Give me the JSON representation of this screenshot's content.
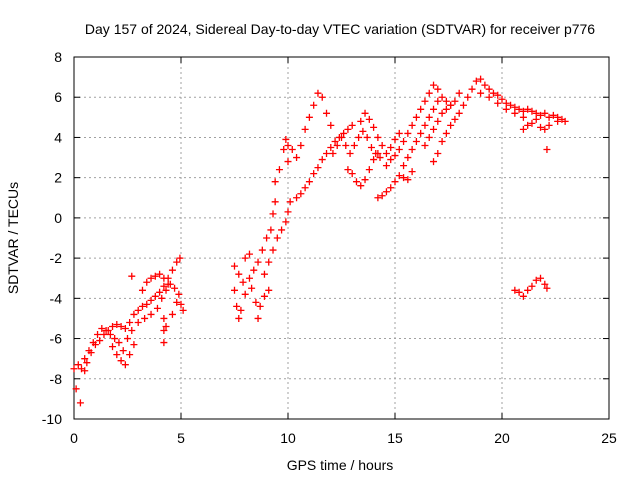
{
  "chart_data": {
    "type": "scatter",
    "title": "Day 157 of 2024, Sidereal Day-to-day VTEC variation (SDTVAR) for receiver p776",
    "xlabel": "GPS time / hours",
    "ylabel": "SDTVAR / TECUs",
    "xlim": [
      0,
      25
    ],
    "ylim": [
      -10,
      8
    ],
    "xticks": [
      0,
      5,
      10,
      15,
      20,
      25
    ],
    "yticks": [
      -10,
      -8,
      -6,
      -4,
      -2,
      0,
      2,
      4,
      6,
      8
    ],
    "grid": true,
    "marker": "plus",
    "color": "#ff0000",
    "series": [
      {
        "name": "",
        "points": [
          [
            0.3,
            -9.2
          ],
          [
            0.1,
            -8.5
          ],
          [
            0.0,
            -7.5
          ],
          [
            0.2,
            -7.3
          ],
          [
            0.35,
            -7.5
          ],
          [
            0.5,
            -7.6
          ],
          [
            0.6,
            -7.2
          ],
          [
            0.8,
            -6.7
          ],
          [
            1.0,
            -6.3
          ],
          [
            1.2,
            -6.1
          ],
          [
            1.4,
            -5.8
          ],
          [
            1.6,
            -5.6
          ],
          [
            1.8,
            -5.4
          ],
          [
            2.0,
            -5.3
          ],
          [
            2.2,
            -5.4
          ],
          [
            2.4,
            -5.5
          ],
          [
            2.6,
            -5.2
          ],
          [
            2.8,
            -4.8
          ],
          [
            3.0,
            -4.6
          ],
          [
            3.2,
            -4.4
          ],
          [
            3.4,
            -4.3
          ],
          [
            3.6,
            -4.1
          ],
          [
            3.8,
            -3.9
          ],
          [
            4.0,
            -3.7
          ],
          [
            4.2,
            -3.4
          ],
          [
            4.4,
            -3.0
          ],
          [
            4.6,
            -2.6
          ],
          [
            4.8,
            -2.2
          ],
          [
            4.95,
            -2.0
          ],
          [
            0.5,
            -7.0
          ],
          [
            0.7,
            -6.6
          ],
          [
            0.9,
            -6.2
          ],
          [
            1.1,
            -5.8
          ],
          [
            1.3,
            -5.5
          ],
          [
            1.5,
            -5.6
          ],
          [
            1.7,
            -5.8
          ],
          [
            1.9,
            -6.0
          ],
          [
            2.1,
            -6.2
          ],
          [
            2.3,
            -6.6
          ],
          [
            2.5,
            -6.0
          ],
          [
            2.7,
            -5.6
          ],
          [
            1.8,
            -6.4
          ],
          [
            2.0,
            -6.8
          ],
          [
            2.2,
            -7.1
          ],
          [
            2.4,
            -7.3
          ],
          [
            2.6,
            -6.8
          ],
          [
            2.8,
            -6.3
          ],
          [
            2.7,
            -2.9
          ],
          [
            3.0,
            -5.2
          ],
          [
            3.3,
            -5.0
          ],
          [
            3.6,
            -4.8
          ],
          [
            3.9,
            -4.5
          ],
          [
            4.1,
            -4.0
          ],
          [
            4.3,
            -3.6
          ],
          [
            4.5,
            -3.3
          ],
          [
            4.7,
            -3.5
          ],
          [
            4.9,
            -3.8
          ],
          [
            5.0,
            -4.3
          ],
          [
            5.1,
            -4.6
          ],
          [
            3.2,
            -3.6
          ],
          [
            3.4,
            -3.2
          ],
          [
            3.6,
            -3.0
          ],
          [
            3.8,
            -2.9
          ],
          [
            4.0,
            -2.8
          ],
          [
            4.2,
            -3.0
          ],
          [
            4.4,
            -3.3
          ],
          [
            4.2,
            -5.0
          ],
          [
            4.2,
            -5.6
          ],
          [
            4.2,
            -6.2
          ],
          [
            4.3,
            -5.4
          ],
          [
            4.6,
            -4.8
          ],
          [
            4.8,
            -4.2
          ],
          [
            7.5,
            -2.4
          ],
          [
            7.7,
            -2.8
          ],
          [
            7.9,
            -3.2
          ],
          [
            8.0,
            -2.0
          ],
          [
            8.2,
            -1.8
          ],
          [
            8.3,
            -3.5
          ],
          [
            8.5,
            -4.2
          ],
          [
            8.6,
            -5.0
          ],
          [
            8.7,
            -4.4
          ],
          [
            8.9,
            -3.9
          ],
          [
            9.1,
            -3.6
          ],
          [
            7.5,
            -3.6
          ],
          [
            7.6,
            -4.4
          ],
          [
            7.7,
            -5.0
          ],
          [
            7.8,
            -4.6
          ],
          [
            8.0,
            -3.8
          ],
          [
            8.2,
            -3.0
          ],
          [
            8.4,
            -2.6
          ],
          [
            8.6,
            -2.2
          ],
          [
            8.8,
            -1.6
          ],
          [
            9.0,
            -1.0
          ],
          [
            9.2,
            -0.6
          ],
          [
            9.3,
            0.2
          ],
          [
            9.4,
            0.8
          ],
          [
            8.9,
            -2.8
          ],
          [
            9.1,
            -2.2
          ],
          [
            9.3,
            -1.6
          ],
          [
            9.5,
            -1.0
          ],
          [
            9.7,
            -0.6
          ],
          [
            9.9,
            -0.2
          ],
          [
            10.0,
            0.3
          ],
          [
            10.1,
            0.8
          ],
          [
            9.4,
            1.8
          ],
          [
            9.6,
            2.4
          ],
          [
            9.8,
            3.4
          ],
          [
            9.9,
            3.9
          ],
          [
            10.0,
            2.8
          ],
          [
            10.4,
            1.0
          ],
          [
            10.6,
            1.2
          ],
          [
            10.8,
            1.5
          ],
          [
            11.0,
            1.8
          ],
          [
            11.2,
            2.2
          ],
          [
            11.4,
            2.5
          ],
          [
            11.6,
            2.9
          ],
          [
            11.8,
            3.2
          ],
          [
            12.0,
            3.5
          ],
          [
            12.2,
            3.8
          ],
          [
            12.4,
            4.0
          ],
          [
            12.6,
            4.2
          ],
          [
            12.8,
            4.4
          ],
          [
            13.0,
            4.6
          ],
          [
            10.0,
            3.6
          ],
          [
            10.2,
            3.4
          ],
          [
            10.4,
            3.0
          ],
          [
            10.6,
            3.6
          ],
          [
            10.8,
            4.4
          ],
          [
            11.0,
            5.0
          ],
          [
            11.2,
            5.6
          ],
          [
            11.4,
            6.2
          ],
          [
            11.6,
            6.0
          ],
          [
            11.8,
            5.2
          ],
          [
            12.0,
            4.6
          ],
          [
            12.1,
            3.2
          ],
          [
            12.3,
            3.6
          ],
          [
            12.5,
            4.0
          ],
          [
            12.7,
            3.6
          ],
          [
            12.9,
            3.2
          ],
          [
            13.1,
            3.6
          ],
          [
            13.3,
            4.0
          ],
          [
            13.5,
            4.3
          ],
          [
            13.7,
            4.0
          ],
          [
            13.9,
            3.5
          ],
          [
            14.1,
            3.2
          ],
          [
            14.3,
            3.0
          ],
          [
            12.8,
            2.4
          ],
          [
            13.0,
            2.2
          ],
          [
            13.2,
            1.8
          ],
          [
            13.4,
            1.6
          ],
          [
            13.6,
            1.9
          ],
          [
            13.8,
            2.4
          ],
          [
            14.0,
            2.9
          ],
          [
            14.2,
            3.2
          ],
          [
            13.4,
            4.8
          ],
          [
            13.6,
            5.2
          ],
          [
            13.8,
            4.9
          ],
          [
            14.0,
            4.5
          ],
          [
            14.2,
            4.0
          ],
          [
            14.4,
            3.6
          ],
          [
            14.6,
            3.2
          ],
          [
            14.8,
            3.5
          ],
          [
            15.0,
            3.9
          ],
          [
            15.2,
            4.2
          ],
          [
            14.2,
            1.0
          ],
          [
            14.4,
            1.1
          ],
          [
            14.6,
            1.3
          ],
          [
            14.8,
            1.5
          ],
          [
            15.0,
            1.8
          ],
          [
            15.2,
            2.1
          ],
          [
            15.4,
            2.0
          ],
          [
            15.6,
            1.9
          ],
          [
            15.8,
            2.3
          ],
          [
            14.6,
            2.6
          ],
          [
            14.8,
            2.9
          ],
          [
            15.0,
            3.1
          ],
          [
            15.2,
            3.4
          ],
          [
            15.4,
            3.8
          ],
          [
            15.6,
            4.2
          ],
          [
            15.8,
            4.6
          ],
          [
            16.0,
            5.0
          ],
          [
            16.2,
            5.4
          ],
          [
            16.4,
            5.8
          ],
          [
            16.6,
            6.2
          ],
          [
            16.8,
            6.6
          ],
          [
            17.0,
            6.4
          ],
          [
            15.4,
            2.6
          ],
          [
            15.6,
            3.0
          ],
          [
            15.8,
            3.4
          ],
          [
            16.0,
            3.8
          ],
          [
            16.2,
            4.2
          ],
          [
            16.4,
            4.6
          ],
          [
            16.6,
            5.0
          ],
          [
            16.8,
            5.4
          ],
          [
            17.0,
            5.8
          ],
          [
            17.2,
            6.0
          ],
          [
            17.4,
            5.8
          ],
          [
            17.6,
            5.6
          ],
          [
            16.4,
            3.6
          ],
          [
            16.6,
            4.0
          ],
          [
            16.8,
            4.4
          ],
          [
            17.0,
            4.8
          ],
          [
            17.2,
            5.2
          ],
          [
            17.4,
            5.4
          ],
          [
            17.6,
            5.6
          ],
          [
            17.8,
            5.8
          ],
          [
            18.0,
            6.2
          ],
          [
            16.8,
            2.8
          ],
          [
            17.0,
            3.2
          ],
          [
            17.2,
            3.8
          ],
          [
            17.4,
            4.2
          ],
          [
            17.6,
            4.6
          ],
          [
            17.8,
            4.9
          ],
          [
            18.0,
            5.2
          ],
          [
            18.2,
            5.6
          ],
          [
            18.4,
            6.0
          ],
          [
            18.6,
            6.4
          ],
          [
            18.8,
            6.8
          ],
          [
            19.0,
            6.9
          ],
          [
            19.2,
            6.6
          ],
          [
            19.4,
            6.4
          ],
          [
            19.6,
            6.2
          ],
          [
            19.8,
            6.1
          ],
          [
            20.0,
            5.9
          ],
          [
            20.2,
            5.7
          ],
          [
            20.4,
            5.6
          ],
          [
            20.6,
            5.5
          ],
          [
            20.8,
            5.4
          ],
          [
            21.0,
            5.3
          ],
          [
            21.2,
            5.4
          ],
          [
            21.4,
            5.3
          ],
          [
            21.6,
            5.2
          ],
          [
            21.8,
            5.1
          ],
          [
            22.0,
            5.2
          ],
          [
            22.2,
            5.0
          ],
          [
            22.4,
            5.1
          ],
          [
            22.6,
            5.0
          ],
          [
            22.8,
            4.9
          ],
          [
            22.95,
            4.8
          ],
          [
            19.0,
            6.2
          ],
          [
            19.4,
            6.0
          ],
          [
            19.8,
            5.7
          ],
          [
            20.2,
            5.4
          ],
          [
            20.6,
            5.2
          ],
          [
            21.0,
            5.0
          ],
          [
            21.4,
            4.7
          ],
          [
            21.8,
            4.5
          ],
          [
            22.2,
            4.6
          ],
          [
            22.6,
            4.8
          ],
          [
            21.0,
            4.4
          ],
          [
            21.2,
            4.6
          ],
          [
            21.6,
            4.9
          ],
          [
            22.0,
            4.4
          ],
          [
            22.1,
            3.4
          ],
          [
            20.6,
            -3.6
          ],
          [
            20.8,
            -3.7
          ],
          [
            21.0,
            -3.9
          ],
          [
            21.2,
            -3.6
          ],
          [
            21.4,
            -3.4
          ],
          [
            21.6,
            -3.1
          ],
          [
            21.8,
            -3.0
          ],
          [
            22.0,
            -3.3
          ],
          [
            22.1,
            -3.5
          ]
        ]
      }
    ]
  }
}
